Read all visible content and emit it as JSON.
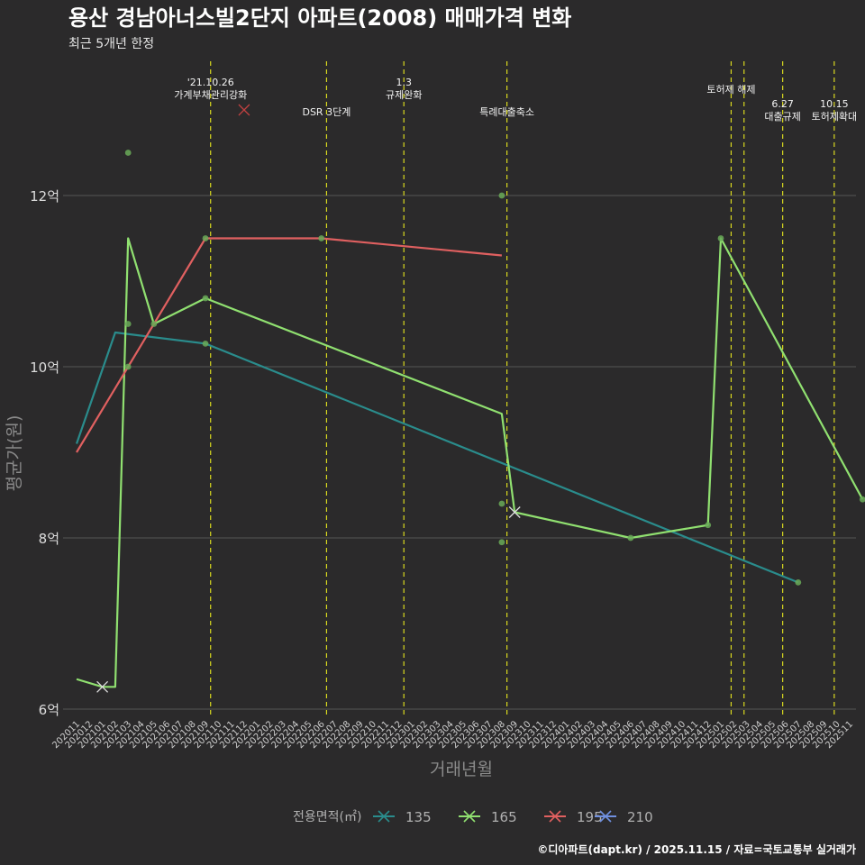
{
  "colors": {
    "background": "#2b2a2b",
    "grid": "#555555",
    "event_line": "#d9d91f",
    "series_135": "#2a8c8c",
    "series_165": "#90e070",
    "series_195": "#e06060",
    "series_210": "#7090e0",
    "points": "#6aaa58"
  },
  "chart_data": {
    "type": "line",
    "title": "용산 경남아너스빌2단지 아파트(2008) 매매가격 변화",
    "subtitle": "최근 5개년 한정",
    "xlabel": "거래년월",
    "ylabel": "평균가(원)",
    "caption": "©디아파트(dapt.kr) / 2025.11.15 / 자료=국토교통부 실거래가",
    "ylim": [
      5.95,
      13.1
    ],
    "yticks": [
      {
        "v": 6,
        "label": "6억"
      },
      {
        "v": 8,
        "label": "8억"
      },
      {
        "v": 10,
        "label": "10억"
      },
      {
        "v": 12,
        "label": "12억"
      }
    ],
    "categories": [
      "202011",
      "202012",
      "202101",
      "202102",
      "202103",
      "202104",
      "202105",
      "202106",
      "202107",
      "202108",
      "202109",
      "202110",
      "202111",
      "202112",
      "202201",
      "202202",
      "202203",
      "202204",
      "202205",
      "202206",
      "202207",
      "202208",
      "202209",
      "202210",
      "202211",
      "202212",
      "202301",
      "202302",
      "202303",
      "202304",
      "202305",
      "202306",
      "202307",
      "202308",
      "202309",
      "202310",
      "202311",
      "202312",
      "202401",
      "202402",
      "202403",
      "202404",
      "202405",
      "202406",
      "202407",
      "202408",
      "202409",
      "202410",
      "202411",
      "202412",
      "202501",
      "202502",
      "202503",
      "202504",
      "202505",
      "202506",
      "202507",
      "202508",
      "202509",
      "202510",
      "202511"
    ],
    "legend_title": "전용면적(㎡)",
    "series": [
      {
        "name": "135",
        "color": "#2a8c8c",
        "points": [
          [
            0,
            9.1
          ],
          [
            3,
            10.4
          ],
          [
            10,
            10.27
          ],
          [
            56,
            7.48
          ]
        ],
        "crosses": []
      },
      {
        "name": "165",
        "color": "#90e070",
        "points": [
          [
            0,
            6.35
          ],
          [
            2,
            6.26
          ],
          [
            2,
            6.26
          ],
          [
            3,
            6.26
          ],
          [
            4,
            11.5
          ],
          [
            6,
            10.5
          ],
          [
            10,
            10.8
          ],
          [
            33,
            9.45
          ],
          [
            34,
            8.3
          ],
          [
            43,
            8.0
          ],
          [
            49,
            8.15
          ],
          [
            50,
            11.5
          ],
          [
            61,
            8.45
          ]
        ],
        "crosses": [
          [
            2,
            6.26
          ],
          [
            34,
            8.3
          ]
        ]
      },
      {
        "name": "195",
        "color": "#e06060",
        "points": [
          [
            0,
            9.0
          ],
          [
            4,
            10.0
          ],
          [
            10,
            11.5
          ],
          [
            19,
            11.5
          ],
          [
            33,
            11.3
          ]
        ],
        "crosses": [
          [
            13,
            13.0
          ]
        ]
      },
      {
        "name": "210",
        "color": "#7090e0",
        "points": [],
        "crosses": []
      }
    ],
    "scatter": [
      [
        4,
        12.5
      ],
      [
        4,
        10.5
      ],
      [
        6,
        10.5
      ],
      [
        10,
        11.5
      ],
      [
        19,
        11.5
      ],
      [
        33,
        12.0
      ],
      [
        33,
        8.4
      ],
      [
        33,
        7.95
      ],
      [
        43,
        8.0
      ],
      [
        49,
        8.15
      ],
      [
        50,
        11.5
      ],
      [
        56,
        7.48
      ],
      [
        61,
        8.45
      ],
      [
        10,
        10.27
      ],
      [
        10,
        10.8
      ],
      [
        4,
        10.0
      ]
    ],
    "events": [
      {
        "x": 10.4,
        "lines": [
          "'21.10.26",
          "가계부채관리강화"
        ],
        "level": 0
      },
      {
        "x": 19.4,
        "lines": [
          "DSR 3단계"
        ],
        "level": 2
      },
      {
        "x": 25.4,
        "lines": [
          "1.3",
          "규제완화"
        ],
        "level": 0
      },
      {
        "x": 33.4,
        "lines": [
          "특례대출축소"
        ],
        "level": 2
      },
      {
        "x": 50.8,
        "lines": [
          "토허제 해제"
        ],
        "level": 1
      },
      {
        "x": 51.8,
        "lines": [],
        "level": 1
      },
      {
        "x": 54.8,
        "lines": [
          "6.27",
          "대출규제"
        ],
        "level": 3
      },
      {
        "x": 58.8,
        "lines": [
          "10.15",
          "토허제확대"
        ],
        "level": 3
      }
    ]
  }
}
